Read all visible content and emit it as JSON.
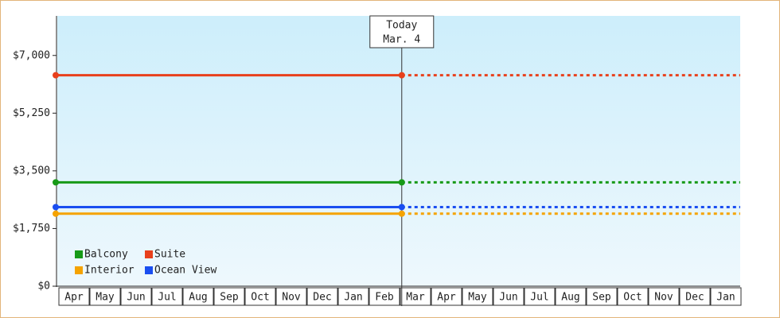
{
  "chart_data": {
    "type": "line",
    "categories": [
      "Apr",
      "May",
      "Jun",
      "Jul",
      "Aug",
      "Sep",
      "Oct",
      "Nov",
      "Dec",
      "Jan",
      "Feb",
      "Mar",
      "Apr",
      "May",
      "Jun",
      "Jul",
      "Aug",
      "Sep",
      "Oct",
      "Nov",
      "Dec",
      "Jan"
    ],
    "series": [
      {
        "name": "Balcony",
        "color": "#179a17",
        "value": 3150
      },
      {
        "name": "Suite",
        "color": "#e8401c",
        "value": 6400
      },
      {
        "name": "Interior",
        "color": "#f5a300",
        "value": 2200
      },
      {
        "name": "Ocean View",
        "color": "#1a4ef0",
        "value": 2400
      }
    ],
    "ylim": [
      0,
      8200
    ],
    "yticks": [
      {
        "value": 0,
        "label": "$0"
      },
      {
        "value": 1750,
        "label": "$1,750"
      },
      {
        "value": 3500,
        "label": "$3,500"
      },
      {
        "value": 5250,
        "label": "$5,250"
      },
      {
        "value": 7000,
        "label": "$7,000"
      }
    ],
    "annotation": {
      "title": "Today",
      "label": "Mar. 4"
    }
  }
}
